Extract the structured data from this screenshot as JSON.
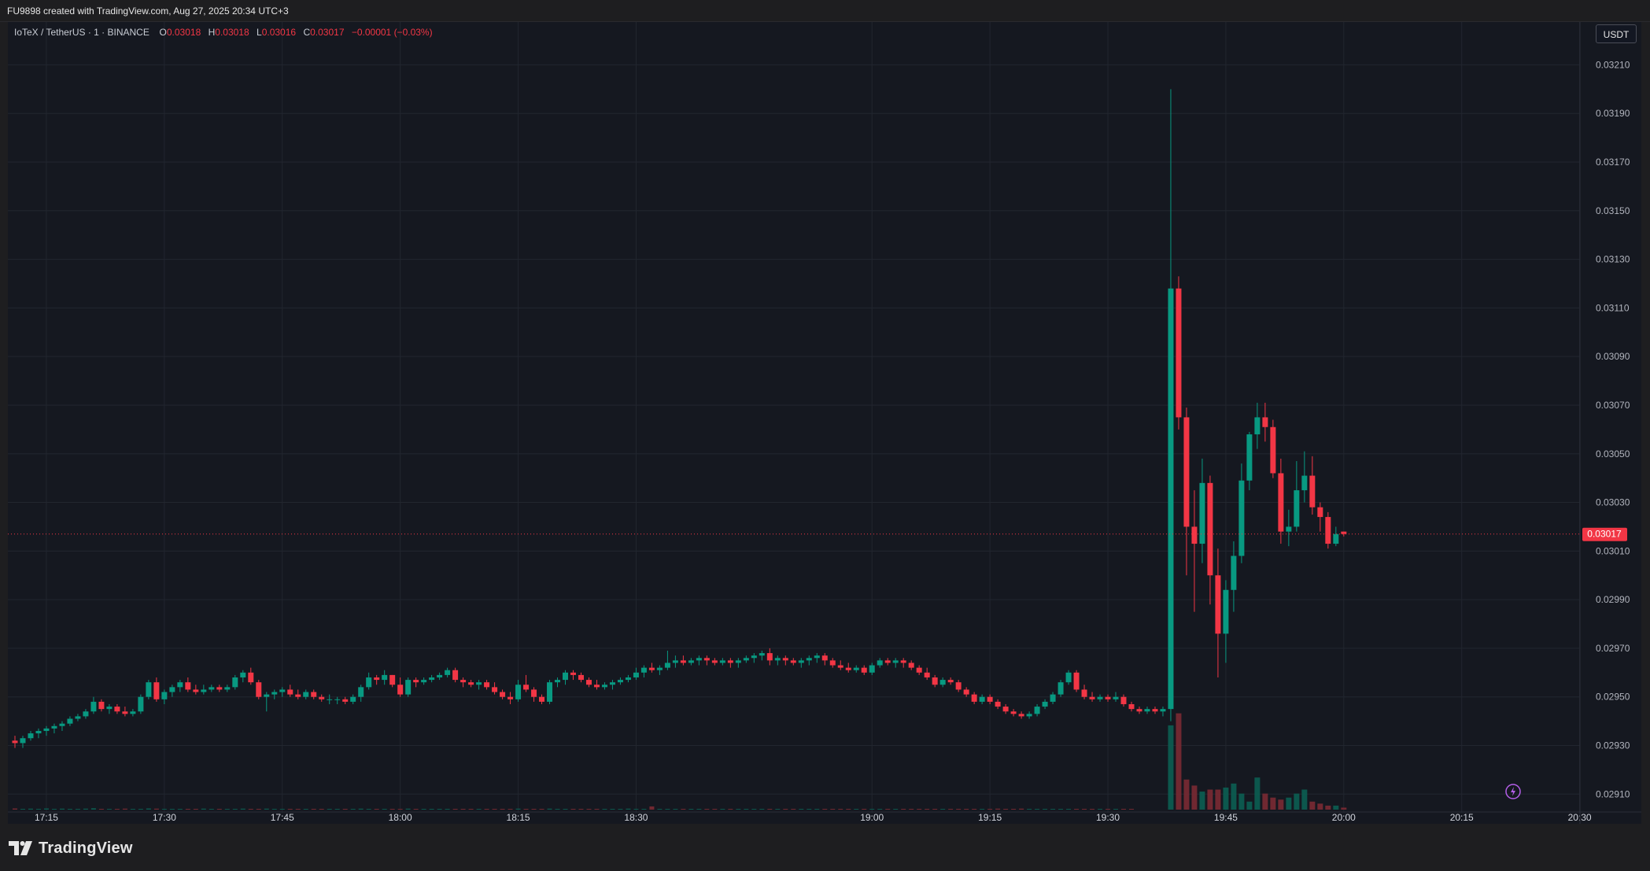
{
  "header": {
    "caption": "FU9898 created with TradingView.com, Aug 27, 2025 20:34 UTC+3"
  },
  "legend": {
    "symbol": "IoTeX / TetherUS · 1 · BINANCE",
    "open_label": "O",
    "open": "0.03018",
    "high_label": "H",
    "high": "0.03018",
    "low_label": "L",
    "low": "0.03016",
    "close_label": "C",
    "close": "0.03017",
    "change": "−0.00001 (−0.03%)"
  },
  "currency_button": "USDT",
  "branding": {
    "logo_text": "TradingView",
    "logo_icon": "tradingview-logo-icon"
  },
  "colors": {
    "background": "#151820",
    "frame": "#1e1e20",
    "grid": "#22262f",
    "up": "#089981",
    "down": "#f23645",
    "text": "#d1d4dc",
    "volume_up": "#0b5e52",
    "volume_down": "#7a2a33",
    "alert": "#b45ee8"
  },
  "chart_data": {
    "type": "candlestick",
    "symbol": "IoTeX / TetherUS",
    "interval": "1",
    "exchange": "BINANCE",
    "y_axis_labels": [
      "0.03210",
      "0.03190",
      "0.03170",
      "0.03150",
      "0.03130",
      "0.03110",
      "0.03090",
      "0.03070",
      "0.03050",
      "0.03030",
      "0.03010",
      "0.02990",
      "0.02970",
      "0.02950",
      "0.02930",
      "0.02910"
    ],
    "x_axis_labels": [
      "17:15",
      "17:30",
      "17:45",
      "18:00",
      "18:15",
      "18:30",
      "19:00",
      "19:15",
      "19:30",
      "19:45",
      "20:00",
      "20:15",
      "20:30"
    ],
    "x_axis_label_times": [
      35,
      50,
      65,
      80,
      95,
      110,
      140,
      155,
      170,
      185,
      200,
      215,
      230
    ],
    "last_price": "0.03017",
    "last_price_value": 0.03017,
    "ylim": [
      0.02902,
      0.03226
    ],
    "grid": true,
    "start_minute": 31,
    "candles_early": [
      [
        0.02932,
        0.02934,
        0.02929,
        0.02931
      ],
      [
        0.02931,
        0.02934,
        0.02929,
        0.02933
      ],
      [
        0.02933,
        0.02936,
        0.02932,
        0.02935
      ],
      [
        0.02935,
        0.02937,
        0.02933,
        0.02936
      ],
      [
        0.02936,
        0.02938,
        0.02934,
        0.02937
      ],
      [
        0.02937,
        0.02939,
        0.02935,
        0.02938
      ],
      [
        0.02938,
        0.0294,
        0.02936,
        0.02939
      ],
      [
        0.02939,
        0.02942,
        0.02938,
        0.02941
      ],
      [
        0.02941,
        0.02943,
        0.0294,
        0.02942
      ],
      [
        0.02942,
        0.02945,
        0.02941,
        0.02944
      ],
      [
        0.02944,
        0.0295,
        0.02943,
        0.02948
      ],
      [
        0.02948,
        0.02949,
        0.02944,
        0.02945
      ],
      [
        0.02945,
        0.02947,
        0.02943,
        0.02946
      ],
      [
        0.02946,
        0.02947,
        0.02943,
        0.02944
      ],
      [
        0.02944,
        0.02946,
        0.02942,
        0.02943
      ],
      [
        0.02943,
        0.02945,
        0.02942,
        0.02944
      ],
      [
        0.02944,
        0.02951,
        0.02943,
        0.0295
      ],
      [
        0.0295,
        0.02957,
        0.02949,
        0.02956
      ],
      [
        0.02956,
        0.02958,
        0.02948,
        0.02949
      ],
      [
        0.02949,
        0.02953,
        0.02947,
        0.02952
      ],
      [
        0.02952,
        0.02955,
        0.0295,
        0.02954
      ],
      [
        0.02954,
        0.02957,
        0.02952,
        0.02956
      ],
      [
        0.02956,
        0.02958,
        0.02952,
        0.02953
      ],
      [
        0.02953,
        0.02955,
        0.02951,
        0.02952
      ],
      [
        0.02952,
        0.02955,
        0.02951,
        0.02953
      ],
      [
        0.02953,
        0.02955,
        0.02952,
        0.02954
      ],
      [
        0.02954,
        0.02955,
        0.02952,
        0.02953
      ],
      [
        0.02953,
        0.02955,
        0.02952,
        0.02954
      ],
      [
        0.02954,
        0.02959,
        0.02953,
        0.02958
      ],
      [
        0.02958,
        0.02961,
        0.02956,
        0.0296
      ],
      [
        0.0296,
        0.02962,
        0.02955,
        0.02956
      ],
      [
        0.02956,
        0.02957,
        0.02949,
        0.0295
      ],
      [
        0.0295,
        0.02952,
        0.02944,
        0.02951
      ],
      [
        0.02951,
        0.02953,
        0.02949,
        0.02952
      ],
      [
        0.02952,
        0.02954,
        0.0295,
        0.02953
      ],
      [
        0.02953,
        0.02955,
        0.0295,
        0.02951
      ],
      [
        0.02951,
        0.02953,
        0.02949,
        0.0295
      ],
      [
        0.0295,
        0.02953,
        0.02949,
        0.02952
      ],
      [
        0.02952,
        0.02953,
        0.02949,
        0.0295
      ],
      [
        0.0295,
        0.02951,
        0.02948,
        0.02949
      ],
      [
        0.02949,
        0.02951,
        0.02947,
        0.02949
      ],
      [
        0.02949,
        0.0295,
        0.02947,
        0.02949
      ],
      [
        0.02949,
        0.0295,
        0.02947,
        0.02948
      ],
      [
        0.02948,
        0.02951,
        0.02947,
        0.0295
      ],
      [
        0.0295,
        0.02955,
        0.02948,
        0.02954
      ],
      [
        0.02954,
        0.0296,
        0.02953,
        0.02958
      ],
      [
        0.02958,
        0.02959,
        0.02955,
        0.02957
      ],
      [
        0.02957,
        0.02961,
        0.02955,
        0.02959
      ],
      [
        0.02959,
        0.02959,
        0.02954,
        0.02955
      ],
      [
        0.02955,
        0.02958,
        0.0295,
        0.02951
      ],
      [
        0.02951,
        0.02958,
        0.0295,
        0.02957
      ],
      [
        0.02957,
        0.02958,
        0.02954,
        0.02956
      ],
      [
        0.02956,
        0.02958,
        0.02955,
        0.02957
      ],
      [
        0.02957,
        0.02959,
        0.02956,
        0.02958
      ],
      [
        0.02958,
        0.0296,
        0.02957,
        0.02959
      ],
      [
        0.02959,
        0.02962,
        0.02958,
        0.02961
      ],
      [
        0.02961,
        0.02962,
        0.02956,
        0.02957
      ],
      [
        0.02957,
        0.02958,
        0.02954,
        0.02956
      ],
      [
        0.02956,
        0.02957,
        0.02954,
        0.02955
      ],
      [
        0.02955,
        0.02957,
        0.02953,
        0.02956
      ],
      [
        0.02956,
        0.02957,
        0.02953,
        0.02954
      ],
      [
        0.02954,
        0.02956,
        0.02951,
        0.02952
      ],
      [
        0.02952,
        0.02953,
        0.02949,
        0.0295
      ],
      [
        0.0295,
        0.02952,
        0.02947,
        0.02949
      ],
      [
        0.02949,
        0.02957,
        0.02948,
        0.02955
      ],
      [
        0.02955,
        0.02959,
        0.02952,
        0.02953
      ],
      [
        0.02953,
        0.02954,
        0.02948,
        0.0295
      ],
      [
        0.0295,
        0.02951,
        0.02947,
        0.02948
      ],
      [
        0.02948,
        0.02957,
        0.02947,
        0.02956
      ],
      [
        0.02956,
        0.02958,
        0.02954,
        0.02957
      ],
      [
        0.02957,
        0.02961,
        0.02955,
        0.0296
      ],
      [
        0.0296,
        0.02961,
        0.02957,
        0.02959
      ],
      [
        0.02959,
        0.0296,
        0.02956,
        0.02957
      ],
      [
        0.02957,
        0.02958,
        0.02954,
        0.02955
      ],
      [
        0.02955,
        0.02957,
        0.02953,
        0.02954
      ],
      [
        0.02954,
        0.02956,
        0.02953,
        0.02955
      ],
      [
        0.02955,
        0.02957,
        0.02953,
        0.02956
      ],
      [
        0.02956,
        0.02958,
        0.02955,
        0.02957
      ],
      [
        0.02957,
        0.02959,
        0.02956,
        0.02958
      ],
      [
        0.02958,
        0.02962,
        0.02957,
        0.0296
      ],
      [
        0.0296,
        0.02963,
        0.02958,
        0.02962
      ],
      [
        0.02962,
        0.02964,
        0.0296,
        0.02961
      ],
      [
        0.02961,
        0.02963,
        0.02959,
        0.02962
      ],
      [
        0.02962,
        0.02969,
        0.02961,
        0.02964
      ],
      [
        0.02964,
        0.02967,
        0.02962,
        0.02965
      ],
      [
        0.02965,
        0.02967,
        0.02963,
        0.02964
      ],
      [
        0.02964,
        0.02966,
        0.02963,
        0.02965
      ],
      [
        0.02965,
        0.02967,
        0.02963,
        0.02966
      ],
      [
        0.02966,
        0.02967,
        0.02963,
        0.02965
      ],
      [
        0.02965,
        0.02966,
        0.02963,
        0.02964
      ],
      [
        0.02964,
        0.02966,
        0.02963,
        0.02965
      ],
      [
        0.02965,
        0.02966,
        0.02962,
        0.02964
      ],
      [
        0.02964,
        0.02966,
        0.02962,
        0.02965
      ],
      [
        0.02965,
        0.02967,
        0.02964,
        0.02966
      ],
      [
        0.02966,
        0.02968,
        0.02964,
        0.02967
      ],
      [
        0.02967,
        0.02969,
        0.02965,
        0.02968
      ],
      [
        0.02968,
        0.0297,
        0.02963,
        0.02965
      ],
      [
        0.02965,
        0.02967,
        0.02963,
        0.02966
      ],
      [
        0.02966,
        0.02967,
        0.02963,
        0.02965
      ],
      [
        0.02965,
        0.02966,
        0.02963,
        0.02964
      ],
      [
        0.02964,
        0.02966,
        0.02962,
        0.02965
      ],
      [
        0.02965,
        0.02967,
        0.02963,
        0.02966
      ],
      [
        0.02966,
        0.02968,
        0.02964,
        0.02967
      ],
      [
        0.02967,
        0.02968,
        0.02963,
        0.02965
      ],
      [
        0.02965,
        0.02966,
        0.02962,
        0.02963
      ],
      [
        0.02963,
        0.02965,
        0.02961,
        0.02962
      ],
      [
        0.02962,
        0.02964,
        0.0296,
        0.02961
      ],
      [
        0.02961,
        0.02963,
        0.0296,
        0.02962
      ],
      [
        0.02962,
        0.02963,
        0.02959,
        0.0296
      ],
      [
        0.0296,
        0.02964,
        0.02959,
        0.02963
      ],
      [
        0.02963,
        0.02966,
        0.02962,
        0.02965
      ],
      [
        0.02965,
        0.02966,
        0.02963,
        0.02964
      ],
      [
        0.02964,
        0.02966,
        0.02962,
        0.02965
      ],
      [
        0.02965,
        0.02966,
        0.02962,
        0.02964
      ],
      [
        0.02964,
        0.02965,
        0.02961,
        0.02962
      ],
      [
        0.02962,
        0.02963,
        0.02959,
        0.0296
      ],
      [
        0.0296,
        0.02962,
        0.02957,
        0.02958
      ],
      [
        0.02958,
        0.02959,
        0.02954,
        0.02955
      ],
      [
        0.02955,
        0.02958,
        0.02954,
        0.02957
      ],
      [
        0.02957,
        0.02958,
        0.02955,
        0.02956
      ],
      [
        0.02956,
        0.02957,
        0.02952,
        0.02953
      ],
      [
        0.02953,
        0.02954,
        0.0295,
        0.02951
      ],
      [
        0.02951,
        0.02952,
        0.02947,
        0.02948
      ],
      [
        0.02948,
        0.02951,
        0.02947,
        0.0295
      ],
      [
        0.0295,
        0.02951,
        0.02947,
        0.02948
      ],
      [
        0.02948,
        0.02949,
        0.02945,
        0.02946
      ],
      [
        0.02946,
        0.02947,
        0.02943,
        0.02944
      ],
      [
        0.02944,
        0.02945,
        0.02942,
        0.02943
      ],
      [
        0.02943,
        0.02944,
        0.02941,
        0.02942
      ],
      [
        0.02942,
        0.02944,
        0.02941,
        0.02943
      ],
      [
        0.02943,
        0.02947,
        0.02942,
        0.02946
      ],
      [
        0.02946,
        0.02949,
        0.02945,
        0.02948
      ],
      [
        0.02948,
        0.02952,
        0.02947,
        0.02951
      ],
      [
        0.02951,
        0.02957,
        0.0295,
        0.02956
      ],
      [
        0.02956,
        0.02961,
        0.02955,
        0.0296
      ],
      [
        0.0296,
        0.02961,
        0.02952,
        0.02953
      ],
      [
        0.02953,
        0.02955,
        0.02949,
        0.0295
      ],
      [
        0.0295,
        0.02952,
        0.02948,
        0.02949
      ],
      [
        0.02949,
        0.02951,
        0.02948,
        0.0295
      ],
      [
        0.0295,
        0.02951,
        0.02948,
        0.02949
      ],
      [
        0.02949,
        0.02952,
        0.02948,
        0.0295
      ],
      [
        0.0295,
        0.02951,
        0.02946,
        0.02947
      ],
      [
        0.02947,
        0.02948,
        0.02944,
        0.02945
      ],
      [
        0.02945,
        0.02946,
        0.02943,
        0.02944
      ],
      [
        0.02944,
        0.02946,
        0.02943,
        0.02945
      ],
      [
        0.02945,
        0.02946,
        0.02943,
        0.02944
      ],
      [
        0.02944,
        0.02946,
        0.02942,
        0.02945
      ]
    ],
    "candles_late": [
      [
        0.02945,
        0.032,
        0.0294,
        0.03118
      ],
      [
        0.03118,
        0.03123,
        0.0306,
        0.03065
      ],
      [
        0.03065,
        0.03069,
        0.03,
        0.0302
      ],
      [
        0.0302,
        0.03035,
        0.02985,
        0.03013
      ],
      [
        0.03013,
        0.03048,
        0.03005,
        0.03038
      ],
      [
        0.03038,
        0.03041,
        0.02988,
        0.03
      ],
      [
        0.03,
        0.03011,
        0.02958,
        0.02976
      ],
      [
        0.02976,
        0.02998,
        0.02964,
        0.02994
      ],
      [
        0.02994,
        0.03014,
        0.02985,
        0.03008
      ],
      [
        0.03008,
        0.03046,
        0.03005,
        0.03039
      ],
      [
        0.03039,
        0.03059,
        0.03035,
        0.03058
      ],
      [
        0.03058,
        0.03071,
        0.03052,
        0.03065
      ],
      [
        0.03065,
        0.03071,
        0.03055,
        0.03061
      ],
      [
        0.03061,
        0.03064,
        0.0304,
        0.03042
      ],
      [
        0.03042,
        0.03048,
        0.03013,
        0.03018
      ],
      [
        0.03018,
        0.03027,
        0.03012,
        0.0302
      ],
      [
        0.0302,
        0.03047,
        0.03018,
        0.03035
      ],
      [
        0.03035,
        0.03051,
        0.0303,
        0.03041
      ],
      [
        0.03041,
        0.03049,
        0.03025,
        0.03028
      ],
      [
        0.03028,
        0.0303,
        0.03018,
        0.03024
      ],
      [
        0.03024,
        0.03026,
        0.03011,
        0.03013
      ],
      [
        0.03013,
        0.0302,
        0.03012,
        0.03017
      ],
      [
        0.03018,
        0.03018,
        0.03016,
        0.03017
      ]
    ],
    "volume_early": [
      0.6,
      0.4,
      0.5,
      0.4,
      0.6,
      0.3,
      0.5,
      0.4,
      0.3,
      0.5,
      0.7,
      0.4,
      0.3,
      0.4,
      0.5,
      0.3,
      0.4,
      0.6,
      0.5,
      0.4,
      0.3,
      0.4,
      0.3,
      0.4,
      0.5,
      0.3,
      0.2,
      0.3,
      0.4,
      0.5,
      0.4,
      0.3,
      0.5,
      0.4,
      0.3,
      0.4,
      0.3,
      0.2,
      0.3,
      0.4,
      0.3,
      0.2,
      0.3,
      0.4,
      0.5,
      0.4,
      0.3,
      0.4,
      0.3,
      0.4,
      0.5,
      0.3,
      0.3,
      0.4,
      0.3,
      0.4,
      0.3,
      0.3,
      0.2,
      0.3,
      0.3,
      0.4,
      0.3,
      0.4,
      0.5,
      0.3,
      0.3,
      0.4,
      0.5,
      0.4,
      0.3,
      0.3,
      0.4,
      0.3,
      0.4,
      0.3,
      0.4,
      0.3,
      0.5,
      0.4,
      0.4,
      1.6,
      0.4,
      0.3,
      0.4,
      0.3,
      0.3,
      0.4,
      0.3,
      0.3,
      0.4,
      0.3,
      0.3,
      0.4,
      0.3,
      0.4,
      0.3,
      0.3,
      0.4,
      0.3,
      0.4,
      0.3,
      0.3,
      0.4,
      0.3,
      0.3,
      0.4,
      0.3,
      0.3,
      0.4,
      0.3,
      0.4,
      0.3,
      0.3,
      0.4,
      0.3,
      0.3,
      0.4,
      0.3,
      0.4,
      0.3,
      0.3,
      0.4,
      0.3,
      0.4,
      0.5,
      0.4,
      0.4,
      0.5,
      0.4,
      0.3,
      0.4,
      0.3,
      0.3,
      0.4,
      0.3,
      0.4,
      0.3,
      0.4,
      0.3,
      0.3,
      0.4,
      0.3
    ],
    "volume_late": [
      42,
      48,
      15,
      12,
      9,
      10,
      10,
      11,
      13,
      8,
      4,
      16,
      8,
      6,
      5,
      6,
      8,
      10,
      4,
      3,
      2,
      2,
      1
    ]
  }
}
